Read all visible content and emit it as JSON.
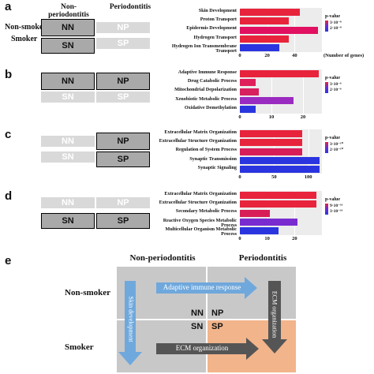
{
  "panels": [
    {
      "label": "a",
      "col_headers": [
        "Non-\nperiodontitis",
        "Periodontitis"
      ],
      "row_labels": [
        "Non-smoker",
        "Smoker"
      ],
      "cells": [
        "NN",
        "NP",
        "SN",
        "SP"
      ],
      "highlight": [
        true,
        false,
        true,
        false
      ],
      "chart_data": {
        "type": "bar",
        "categories": [
          "Skin Development",
          "Proton Transport",
          "Epidermis Development",
          "Hydrogen Transport",
          "Hydrogen Ion Transmembrane Transport"
        ],
        "values": [
          44,
          36,
          57,
          36,
          29
        ],
        "colors": [
          "#e8233c",
          "#e8233c",
          "#e11060",
          "#e8233c",
          "#2a35e0"
        ],
        "xticks": [
          0,
          20,
          40
        ],
        "xlim": [
          0,
          60
        ],
        "xlabel": "(Number of genes)",
        "legend_title": "p-value",
        "legend_labels": [
          "3·10⁻⁸",
          "2·10⁻⁸"
        ]
      }
    },
    {
      "label": "b",
      "cells": [
        "NN",
        "NP",
        "SN",
        "SP"
      ],
      "highlight": [
        true,
        true,
        false,
        false
      ],
      "chart_data": {
        "type": "bar",
        "categories": [
          "Adaptive Immune Response",
          "Drug Catabolic Process",
          "Mitochondrial Depolarization",
          "Xenobiotic Metabolic Process",
          "Oxidative Demethylation"
        ],
        "values": [
          25,
          5,
          6,
          17,
          5
        ],
        "colors": [
          "#e8233c",
          "#e0205a",
          "#d8205e",
          "#9a2bc0",
          "#2a35e0"
        ],
        "xticks": [
          0,
          10,
          20
        ],
        "xlim": [
          0,
          26
        ],
        "legend_title": "p-value",
        "legend_labels": [
          "3·10⁻⁶",
          "2·10⁻⁶"
        ]
      }
    },
    {
      "label": "c",
      "cells": [
        "NN",
        "NP",
        "SN",
        "SP"
      ],
      "highlight": [
        false,
        true,
        false,
        true
      ],
      "chart_data": {
        "type": "bar",
        "categories": [
          "Extracellular Matrix Organization",
          "Extracellular Structure Organization",
          "Regulation of System Process",
          "Synaptic Transmission",
          "Synaptic Signaling"
        ],
        "values": [
          91,
          91,
          91,
          117,
          117
        ],
        "colors": [
          "#e8233c",
          "#e8233c",
          "#d81e58",
          "#2a35e0",
          "#2a35e0"
        ],
        "xticks": [
          0,
          50,
          100
        ],
        "xlim": [
          0,
          120
        ],
        "legend_title": "p-value",
        "legend_labels": [
          "3·10⁻¹⁰",
          "2·10⁻¹⁰"
        ]
      }
    },
    {
      "label": "d",
      "cells": [
        "NN",
        "NP",
        "SN",
        "SP"
      ],
      "highlight": [
        false,
        false,
        true,
        true
      ],
      "chart_data": {
        "type": "bar",
        "categories": [
          "Extracellular Matrix Organization",
          "Extracellular Structure Organization",
          "Secondary Metabolic Process",
          "Reactive Oxygen Species Metabolic Process",
          "Multicellular Organism Metabolic Process"
        ],
        "values": [
          28,
          28,
          11,
          21,
          14
        ],
        "colors": [
          "#e8233c",
          "#e8233c",
          "#d81e58",
          "#7a2bd0",
          "#2a35e0"
        ],
        "xticks": [
          0,
          10,
          20
        ],
        "xlim": [
          0,
          30
        ],
        "legend_title": "p-value",
        "legend_labels": [
          "9·10⁻¹⁶",
          "3·10⁻¹⁶"
        ]
      }
    }
  ],
  "panel_e": {
    "label": "e",
    "col_headers": [
      "Non-periodontitis",
      "Periodontitis"
    ],
    "row_labels": [
      "Non-smoker",
      "Smoker"
    ],
    "cells": [
      "NN",
      "NP",
      "SN",
      "SP"
    ],
    "arrows": {
      "top": "Adaptive immune response",
      "bottom": "ECM organization",
      "left": "Skin development",
      "right": "ECM organization"
    },
    "colors": {
      "grid": "#c8c8c8",
      "sp": "#f2b48a",
      "arrow_blue": "#6fa8dc",
      "arrow_dark": "#555555"
    }
  }
}
